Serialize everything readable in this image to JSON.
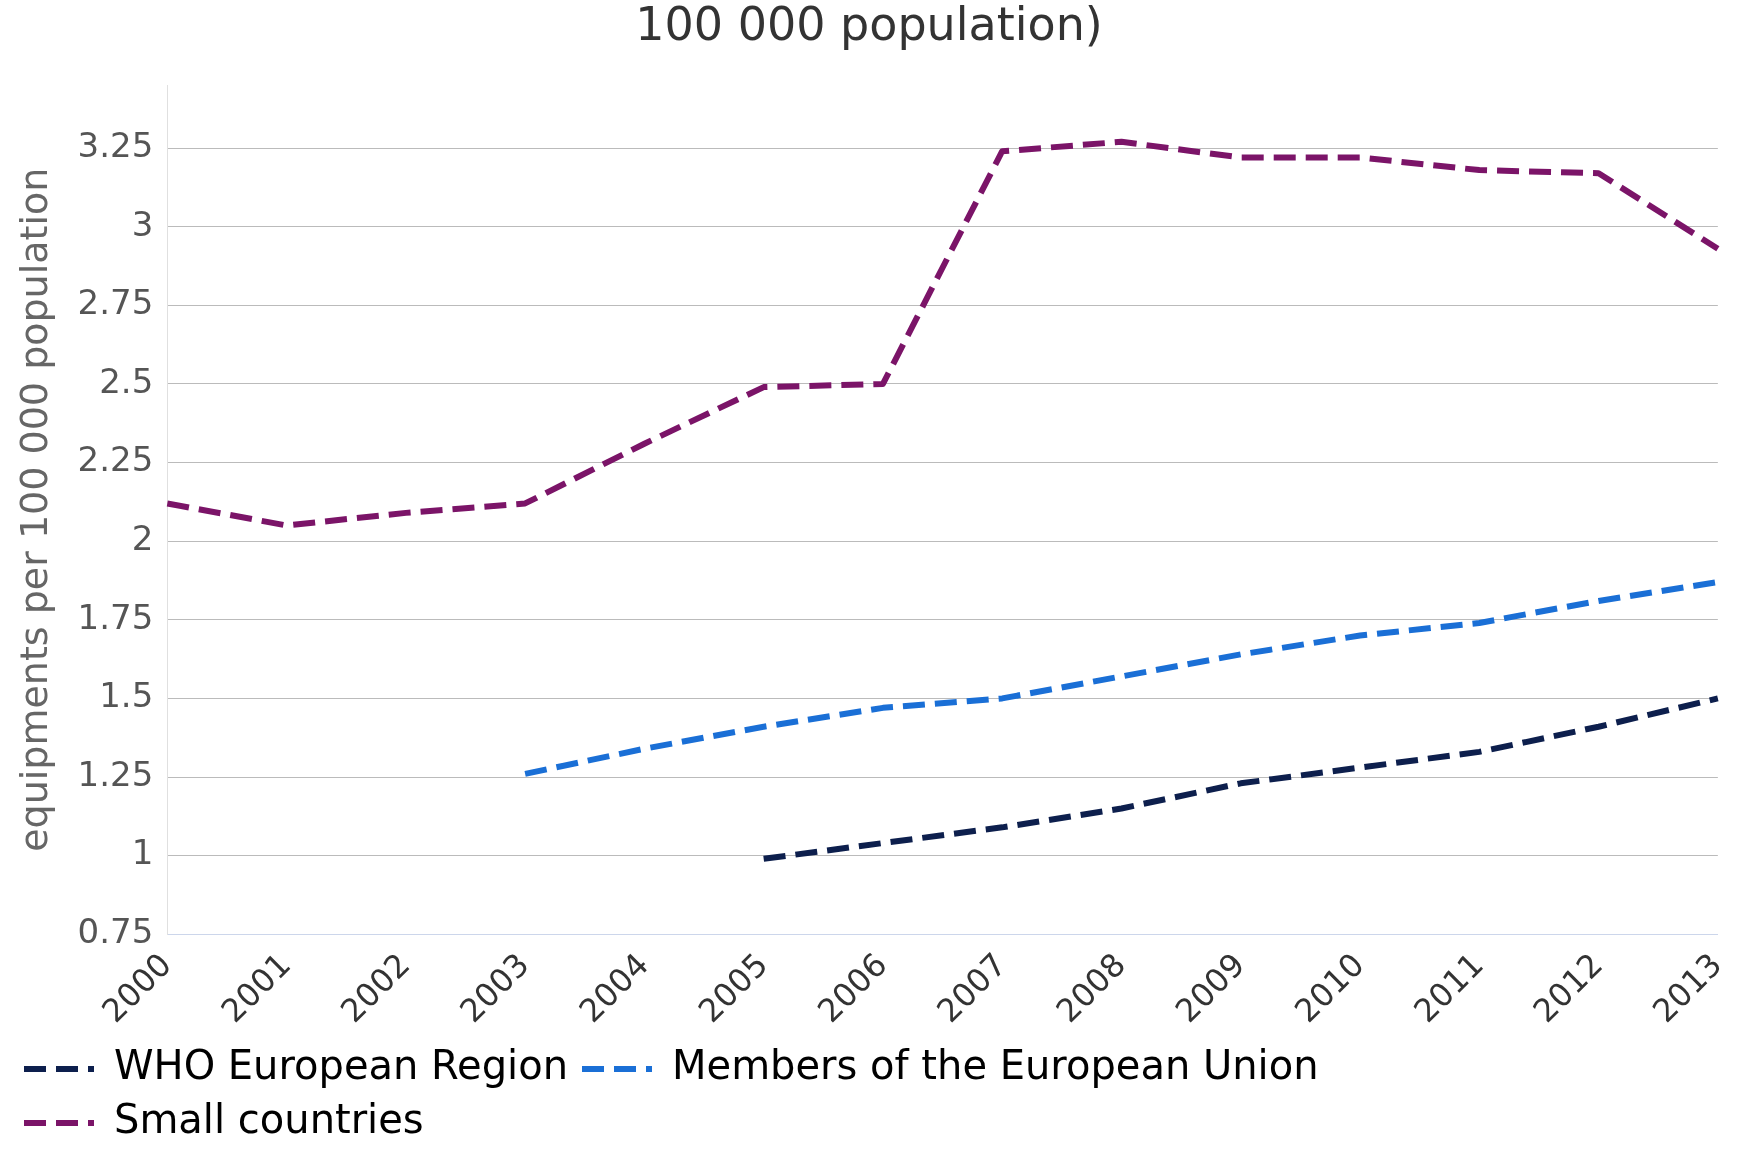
{
  "chart_data": {
    "type": "line",
    "title": "100 000 population)",
    "ylabel": "equipments per 100 000 population",
    "categories": [
      "2000",
      "2001",
      "2002",
      "2003",
      "2004",
      "2005",
      "2006",
      "2007",
      "2008",
      "2009",
      "2010",
      "2011",
      "2012",
      "2013"
    ],
    "series": [
      {
        "name": "WHO European Region",
        "color": "#0d1f4d",
        "values": [
          null,
          null,
          null,
          null,
          null,
          0.99,
          1.04,
          1.09,
          1.15,
          1.23,
          1.28,
          1.33,
          1.41,
          1.5
        ]
      },
      {
        "name": "Members of the European Union",
        "color": "#1a6fd6",
        "values": [
          null,
          null,
          null,
          1.26,
          1.34,
          1.41,
          1.47,
          1.5,
          1.57,
          1.64,
          1.7,
          1.74,
          1.81,
          1.87
        ]
      },
      {
        "name": "Small countries",
        "color": "#7b1468",
        "values": [
          2.12,
          2.05,
          2.09,
          2.12,
          2.31,
          2.49,
          2.5,
          3.24,
          3.27,
          3.22,
          3.22,
          3.18,
          3.17,
          2.93
        ]
      }
    ],
    "ylim": [
      0.75,
      3.45
    ],
    "yticks": [
      0.75,
      1,
      1.25,
      1.5,
      1.75,
      2,
      2.25,
      2.5,
      2.75,
      3,
      3.25
    ],
    "grid": "y",
    "legend": "bottom",
    "marker": "none",
    "line_style": "dashed"
  }
}
